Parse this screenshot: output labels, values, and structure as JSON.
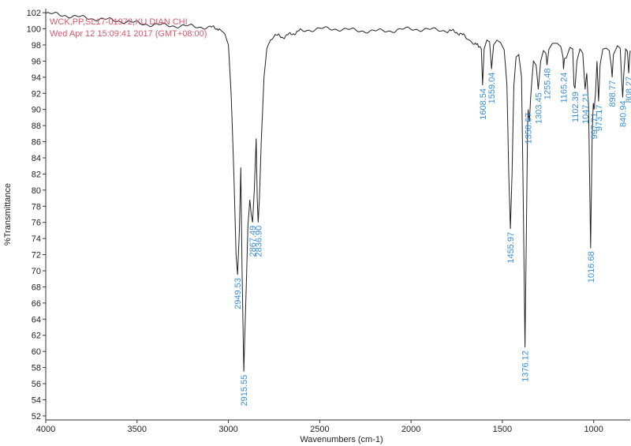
{
  "header": {
    "line1": "WCK,PP,SL17-01972,XU DIAN CHI",
    "line2": "Wed Apr 12 15:09:41 2017 (GMT+08:00)",
    "color": "#d9576b"
  },
  "chart_data": {
    "type": "line",
    "xlabel": "Wavenumbers (cm-1)",
    "ylabel": "%Transmittance",
    "xlim": [
      4000,
      800
    ],
    "ylim": [
      51.5,
      102.5
    ],
    "x_reversed": true,
    "x_ticks": [
      "4000",
      "3500",
      "3000",
      "2500",
      "2000",
      "1500",
      "1000"
    ],
    "y_ticks": [
      "102",
      "100",
      "98",
      "96",
      "94",
      "92",
      "90",
      "88",
      "86",
      "84",
      "82",
      "80",
      "78",
      "76",
      "74",
      "72",
      "70",
      "68",
      "66",
      "64",
      "62",
      "60",
      "58",
      "56",
      "54",
      "52"
    ],
    "grid": false,
    "line_color": "#222222",
    "label_color": "#3a8fd6",
    "series": [
      {
        "points": [
          [
            4000,
            101.9
          ],
          [
            3900,
            101.7
          ],
          [
            3800,
            101.4
          ],
          [
            3700,
            101.2
          ],
          [
            3600,
            101.0
          ],
          [
            3500,
            100.7
          ],
          [
            3400,
            100.5
          ],
          [
            3300,
            100.4
          ],
          [
            3200,
            100.3
          ],
          [
            3100,
            100.2
          ],
          [
            3050,
            100.0
          ],
          [
            3020,
            99.4
          ],
          [
            3000,
            98.0
          ],
          [
            2985,
            92.0
          ],
          [
            2970,
            82.0
          ],
          [
            2958,
            72.0
          ],
          [
            2949.53,
            69.5
          ],
          [
            2940,
            75.0
          ],
          [
            2932,
            82.8
          ],
          [
            2925,
            70.0
          ],
          [
            2915.55,
            57.5
          ],
          [
            2905,
            66.0
          ],
          [
            2893,
            75.5
          ],
          [
            2883,
            78.8
          ],
          [
            2875,
            77.0
          ],
          [
            2867.49,
            76.0
          ],
          [
            2858,
            80.0
          ],
          [
            2848,
            86.4
          ],
          [
            2842,
            79.0
          ],
          [
            2836.9,
            76.0
          ],
          [
            2830,
            79.0
          ],
          [
            2820,
            86.0
          ],
          [
            2805,
            94.0
          ],
          [
            2790,
            97.5
          ],
          [
            2770,
            98.8
          ],
          [
            2750,
            99.2
          ],
          [
            2700,
            99.0
          ],
          [
            2650,
            99.4
          ],
          [
            2600,
            99.8
          ],
          [
            2500,
            100.0
          ],
          [
            2400,
            100.0
          ],
          [
            2300,
            99.8
          ],
          [
            2200,
            99.7
          ],
          [
            2100,
            99.8
          ],
          [
            2000,
            100.0
          ],
          [
            1900,
            99.9
          ],
          [
            1800,
            99.8
          ],
          [
            1750,
            99.6
          ],
          [
            1700,
            99.0
          ],
          [
            1660,
            98.3
          ],
          [
            1630,
            97.8
          ],
          [
            1615,
            97.5
          ],
          [
            1608.54,
            93.0
          ],
          [
            1600,
            97.5
          ],
          [
            1585,
            98.6
          ],
          [
            1570,
            98.4
          ],
          [
            1559.04,
            95.0
          ],
          [
            1548,
            98.0
          ],
          [
            1530,
            98.6
          ],
          [
            1510,
            98.3
          ],
          [
            1490,
            97.4
          ],
          [
            1475,
            93.0
          ],
          [
            1465,
            82.0
          ],
          [
            1455.97,
            75.2
          ],
          [
            1447,
            82.0
          ],
          [
            1437,
            93.0
          ],
          [
            1425,
            96.5
          ],
          [
            1410,
            96.8
          ],
          [
            1395,
            94.0
          ],
          [
            1385,
            78.0
          ],
          [
            1376.12,
            60.5
          ],
          [
            1368,
            76.0
          ],
          [
            1362,
            88.0
          ],
          [
            1358.67,
            90.0
          ],
          [
            1352,
            88.5
          ],
          [
            1345,
            91.5
          ],
          [
            1330,
            96.0
          ],
          [
            1315,
            95.5
          ],
          [
            1303.45,
            92.5
          ],
          [
            1290,
            96.0
          ],
          [
            1275,
            97.3
          ],
          [
            1262,
            97.0
          ],
          [
            1255.48,
            95.5
          ],
          [
            1245,
            97.5
          ],
          [
            1225,
            98.2
          ],
          [
            1200,
            98.2
          ],
          [
            1180,
            97.8
          ],
          [
            1168,
            96.5
          ],
          [
            1165.24,
            95.0
          ],
          [
            1160,
            96.3
          ],
          [
            1150,
            96.4
          ],
          [
            1130,
            97.7
          ],
          [
            1115,
            97.5
          ],
          [
            1108,
            93.0
          ],
          [
            1102.39,
            92.6
          ],
          [
            1092,
            96.0
          ],
          [
            1075,
            97.5
          ],
          [
            1060,
            97.0
          ],
          [
            1047.21,
            92.5
          ],
          [
            1038,
            94.5
          ],
          [
            1028,
            90.5
          ],
          [
            1016.68,
            72.8
          ],
          [
            1008,
            87.0
          ],
          [
            1002,
            90.8
          ],
          [
            997.71,
            90.0
          ],
          [
            990,
            92.0
          ],
          [
            982,
            96.0
          ],
          [
            973.17,
            91.0
          ],
          [
            965,
            95.5
          ],
          [
            950,
            97.5
          ],
          [
            930,
            97.6
          ],
          [
            915,
            97.3
          ],
          [
            904,
            95.5
          ],
          [
            898.77,
            94.0
          ],
          [
            892,
            96.8
          ],
          [
            870,
            97.9
          ],
          [
            855,
            97.6
          ],
          [
            845,
            93.0
          ],
          [
            840.94,
            91.5
          ],
          [
            835,
            94.5
          ],
          [
            825,
            97.5
          ],
          [
            815,
            97.2
          ],
          [
            808.27,
            94.5
          ],
          [
            803,
            96.5
          ],
          [
            800,
            97.3
          ]
        ]
      }
    ],
    "peaks": [
      {
        "label": "2949.53",
        "x": 2949.53,
        "y": 69.5
      },
      {
        "label": "2915.55",
        "x": 2915.55,
        "y": 57.5
      },
      {
        "label": "2867.49",
        "x": 2867.49,
        "y": 76.0
      },
      {
        "label": "2836.90",
        "x": 2836.9,
        "y": 76.0
      },
      {
        "label": "1608.54",
        "x": 1608.54,
        "y": 93.0
      },
      {
        "label": "1559.04",
        "x": 1559.04,
        "y": 95.0
      },
      {
        "label": "1455.97",
        "x": 1455.97,
        "y": 75.2
      },
      {
        "label": "1376.12",
        "x": 1376.12,
        "y": 60.5
      },
      {
        "label": "1358.67",
        "x": 1358.67,
        "y": 90.0
      },
      {
        "label": "1303.45",
        "x": 1303.45,
        "y": 92.5
      },
      {
        "label": "1255.48",
        "x": 1255.48,
        "y": 95.5
      },
      {
        "label": "1165.24",
        "x": 1165.24,
        "y": 95.0
      },
      {
        "label": "1102.39",
        "x": 1102.39,
        "y": 92.6
      },
      {
        "label": "1047.21",
        "x": 1047.21,
        "y": 92.5
      },
      {
        "label": "1016.68",
        "x": 1016.68,
        "y": 72.8
      },
      {
        "label": "997.71",
        "x": 997.71,
        "y": 90.0
      },
      {
        "label": "973.17",
        "x": 973.17,
        "y": 91.0
      },
      {
        "label": "898.77",
        "x": 898.77,
        "y": 94.0
      },
      {
        "label": "840.94",
        "x": 840.94,
        "y": 91.5
      },
      {
        "label": "808.27",
        "x": 808.27,
        "y": 94.5
      }
    ]
  }
}
